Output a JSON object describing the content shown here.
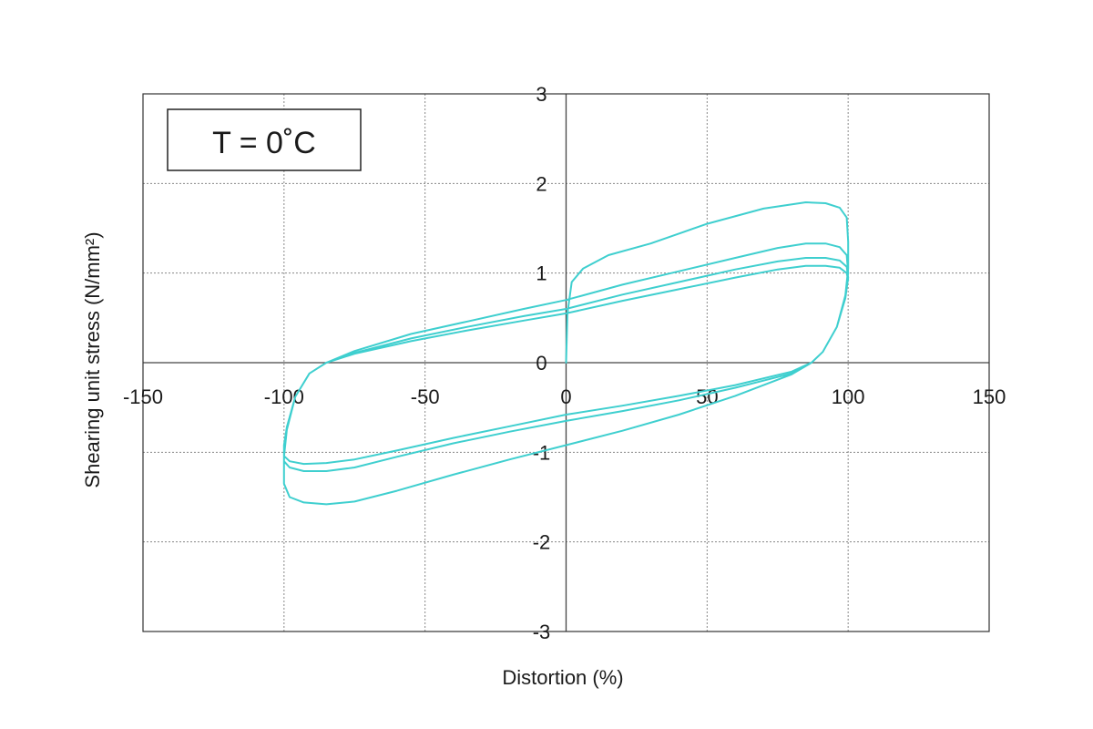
{
  "chart_data": {
    "type": "line",
    "title": "",
    "xlabel": "Distortion (%)",
    "ylabel": "Shearing unit stress (N/mm²)",
    "xlim": [
      -150,
      150
    ],
    "ylim": [
      -3,
      3
    ],
    "xticks": [
      -150,
      -100,
      -50,
      0,
      50,
      100,
      150
    ],
    "yticks": [
      -3,
      -2,
      -1,
      0,
      1,
      2,
      3
    ],
    "grid": true,
    "annotation": "T = 0˚C",
    "colors": {
      "series": "#3fcfcf",
      "grid": "#888888",
      "frame": "#333333"
    },
    "series": [
      {
        "values": [
          [
            0,
            0
          ],
          [
            0.5,
            0.55
          ],
          [
            2,
            0.9
          ],
          [
            6,
            1.05
          ],
          [
            15,
            1.2
          ],
          [
            30,
            1.33
          ],
          [
            50,
            1.55
          ],
          [
            70,
            1.72
          ],
          [
            85,
            1.79
          ],
          [
            92,
            1.78
          ],
          [
            97,
            1.73
          ],
          [
            99.5,
            1.62
          ],
          [
            100,
            1.35
          ],
          [
            100,
            1.05
          ],
          [
            99,
            0.75
          ],
          [
            96,
            0.4
          ],
          [
            91,
            0.12
          ],
          [
            87,
            0.0
          ],
          [
            80,
            -0.13
          ],
          [
            60,
            -0.37
          ],
          [
            40,
            -0.58
          ],
          [
            20,
            -0.76
          ],
          [
            0,
            -0.92
          ],
          [
            -20,
            -1.08
          ],
          [
            -40,
            -1.25
          ],
          [
            -60,
            -1.43
          ],
          [
            -75,
            -1.55
          ],
          [
            -85,
            -1.58
          ],
          [
            -93,
            -1.56
          ],
          [
            -98,
            -1.5
          ],
          [
            -100,
            -1.35
          ],
          [
            -100,
            -1.05
          ],
          [
            -99,
            -0.75
          ],
          [
            -96,
            -0.38
          ],
          [
            -91,
            -0.12
          ],
          [
            -85,
            0.0
          ],
          [
            -75,
            0.13
          ],
          [
            -55,
            0.32
          ],
          [
            -35,
            0.46
          ],
          [
            -15,
            0.6
          ],
          [
            0,
            0.7
          ],
          [
            20,
            0.87
          ],
          [
            40,
            1.02
          ],
          [
            60,
            1.17
          ],
          [
            75,
            1.28
          ],
          [
            85,
            1.33
          ],
          [
            92,
            1.33
          ],
          [
            97,
            1.29
          ],
          [
            99.5,
            1.2
          ],
          [
            100,
            1.0
          ],
          [
            99,
            0.75
          ],
          [
            96,
            0.4
          ],
          [
            91,
            0.12
          ],
          [
            87,
            0.0
          ],
          [
            80,
            -0.12
          ],
          [
            60,
            -0.28
          ],
          [
            40,
            -0.42
          ],
          [
            20,
            -0.54
          ],
          [
            0,
            -0.65
          ],
          [
            -20,
            -0.77
          ],
          [
            -40,
            -0.9
          ],
          [
            -60,
            -1.05
          ],
          [
            -75,
            -1.17
          ],
          [
            -85,
            -1.21
          ],
          [
            -93,
            -1.21
          ],
          [
            -98,
            -1.17
          ],
          [
            -100,
            -1.1
          ],
          [
            -100,
            -0.95
          ],
          [
            -99,
            -0.72
          ],
          [
            -96,
            -0.38
          ],
          [
            -91,
            -0.12
          ],
          [
            -85,
            0.0
          ],
          [
            -75,
            0.11
          ],
          [
            -55,
            0.27
          ],
          [
            -35,
            0.4
          ],
          [
            -15,
            0.52
          ],
          [
            0,
            0.6
          ],
          [
            20,
            0.76
          ],
          [
            40,
            0.9
          ],
          [
            60,
            1.04
          ],
          [
            75,
            1.13
          ],
          [
            85,
            1.17
          ],
          [
            92,
            1.17
          ],
          [
            97,
            1.14
          ],
          [
            99.5,
            1.07
          ],
          [
            100,
            0.95
          ],
          [
            99,
            0.72
          ],
          [
            96,
            0.4
          ],
          [
            91,
            0.12
          ],
          [
            87,
            0.0
          ],
          [
            80,
            -0.1
          ],
          [
            60,
            -0.25
          ],
          [
            40,
            -0.37
          ],
          [
            20,
            -0.48
          ],
          [
            0,
            -0.58
          ],
          [
            -20,
            -0.71
          ],
          [
            -40,
            -0.84
          ],
          [
            -60,
            -0.98
          ],
          [
            -75,
            -1.08
          ],
          [
            -85,
            -1.12
          ],
          [
            -93,
            -1.13
          ],
          [
            -98,
            -1.1
          ],
          [
            -100,
            -1.04
          ],
          [
            -100,
            -0.92
          ],
          [
            -99,
            -0.72
          ],
          [
            -96,
            -0.38
          ],
          [
            -91,
            -0.12
          ],
          [
            -85,
            0.0
          ],
          [
            -75,
            0.1
          ],
          [
            -55,
            0.24
          ],
          [
            -35,
            0.36
          ],
          [
            -15,
            0.47
          ],
          [
            0,
            0.55
          ],
          [
            20,
            0.69
          ],
          [
            40,
            0.82
          ],
          [
            60,
            0.95
          ],
          [
            75,
            1.04
          ],
          [
            85,
            1.08
          ],
          [
            92,
            1.08
          ],
          [
            97,
            1.06
          ],
          [
            99.5,
            1.0
          ],
          [
            100,
            0.92
          ]
        ]
      }
    ]
  }
}
